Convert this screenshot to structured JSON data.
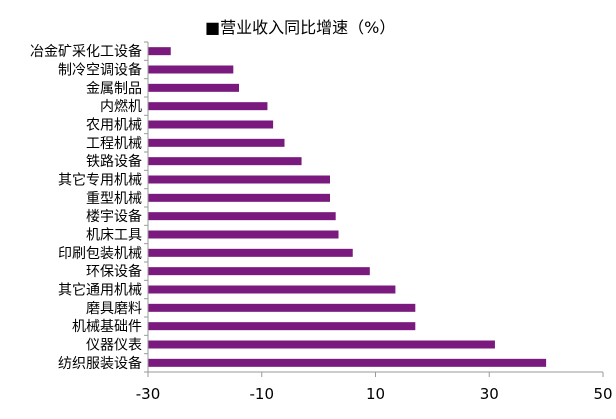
{
  "chart_data": {
    "type": "bar",
    "orientation": "horizontal",
    "legend": "■营业收入同比增速（%）",
    "legend_placement": "top",
    "series": [
      {
        "name": "营业收入同比增速（%）",
        "color": "#7B1A7E"
      }
    ],
    "categories": [
      "冶金矿采化工设备",
      "制冷空调设备",
      "金属制品",
      "内燃机",
      "农用机械",
      "工程机械",
      "铁路设备",
      "其它专用机械",
      "重型机械",
      "楼宇设备",
      "机床工具",
      "印刷包装机械",
      "环保设备",
      "其它通用机械",
      "磨具磨料",
      "机械基础件",
      "仪器仪表",
      "纺织服装设备"
    ],
    "values": [
      -26,
      -15,
      -14,
      -9,
      -8,
      -6,
      -3,
      2,
      2,
      3,
      3.5,
      6,
      9,
      13.5,
      17,
      17,
      31,
      40
    ],
    "xlim": [
      -30,
      50
    ],
    "xticks": [
      "-30",
      "-10",
      "10",
      "30",
      "50"
    ],
    "grid": false
  }
}
